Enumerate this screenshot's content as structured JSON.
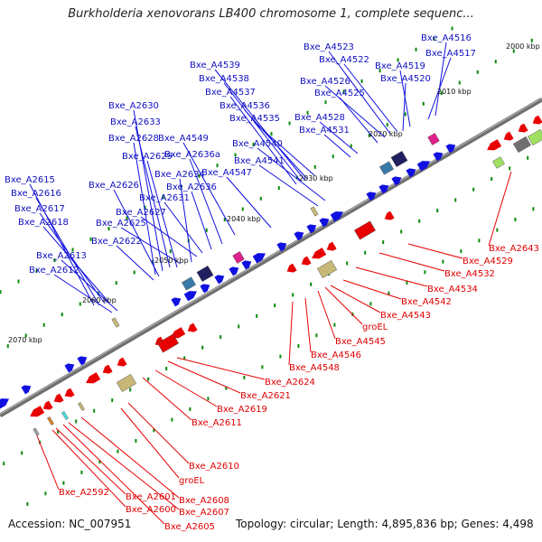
{
  "title": "Burkholderia xenovorans LB400 chromosome 1, complete sequenc...",
  "footer": {
    "accession": "Accession: NC_007951",
    "topology": "Topology: circular; Length: 4,895,836 bp; Genes: 4,498"
  },
  "colors": {
    "backbone": "#707070",
    "forward_cds": "#1010e0",
    "reverse_cds": "#e80000",
    "forward_label": "#1010c0",
    "reverse_label": "#e00000",
    "tick": "#0a8a0a",
    "rna": "#c8b878",
    "pink": "#e0208a",
    "dark": "#202060"
  },
  "tick_labels": [
    "2000 kbp",
    "2010 kbp",
    "2020 kbp",
    "2030 kbp",
    "2040 kbp",
    "2050 kbp",
    "2060 kbp",
    "2070 kbp"
  ],
  "forward_labels": [
    "Bxe_A4516",
    "Bxe_A4517",
    "Bxe_A4523",
    "Bxe_A4522",
    "Bxe_A4519",
    "Bxe_A4520",
    "Bxe_A4526",
    "Bxe_A4525",
    "Bxe_A4539",
    "Bxe_A4538",
    "Bxe_A4537",
    "Bxe_A4536",
    "Bxe_A4535",
    "Bxe_A4528",
    "Bxe_A4531",
    "Bxe_A2630",
    "Bxe_A2633",
    "Bxe_A2628",
    "Bxe_A4549",
    "Bxe_A4540",
    "Bxe_A2629",
    "Bxe_A2636a",
    "Bxe_A4541",
    "Bxe_A2634",
    "Bxe_A4547",
    "Bxe_A2615",
    "Bxe_A2626",
    "Bxe_A2636",
    "Bxe_A2616",
    "Bxe_A2631",
    "Bxe_A2617",
    "Bxe_A2627",
    "Bxe_A2618",
    "Bxe_A2625",
    "Bxe_A2622",
    "Bxe_A2613",
    "Bxe_A2612"
  ],
  "reverse_labels": [
    "Bxe_A2643",
    "Bxe_A4529",
    "Bxe_A4532",
    "Bxe_A4534",
    "Bxe_A4542",
    "Bxe_A4543",
    "groEL",
    "Bxe_A4545",
    "Bxe_A4546",
    "Bxe_A4548",
    "Bxe_A2624",
    "Bxe_A2621",
    "Bxe_A2619",
    "Bxe_A2611",
    "Bxe_A2610",
    "groEL",
    "Bxe_A2592",
    "Bxe_A2601",
    "Bxe_A2608",
    "Bxe_A2600",
    "Bxe_A2607",
    "Bxe_A2605"
  ]
}
